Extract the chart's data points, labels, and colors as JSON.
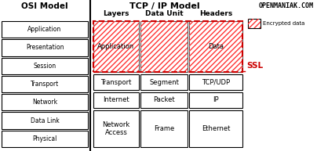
{
  "title_osi": "OSI Model",
  "title_tcp": "TCP / IP Model",
  "title_brand": "OPENMANIAK.COM",
  "col_headers": [
    "Layers",
    "Data Unit",
    "Headers"
  ],
  "osi_layers": [
    "Application",
    "Presentation",
    "Session",
    "Transport",
    "Network",
    "Data Link",
    "Physical"
  ],
  "tcp_rows": [
    [
      "Application",
      "",
      "Data"
    ],
    [
      "Transport",
      "Segment",
      "TCP/UDP"
    ],
    [
      "Internet",
      "Packet",
      "IP"
    ],
    [
      "Network\nAccess",
      "Frame",
      "Ethernet"
    ]
  ],
  "encrypted_label": "Encrypted data",
  "ssl_label": "SSL",
  "bg_color": "#ffffff",
  "ssl_color": "#cc0000",
  "hatch_edge_color": "#ff3333"
}
